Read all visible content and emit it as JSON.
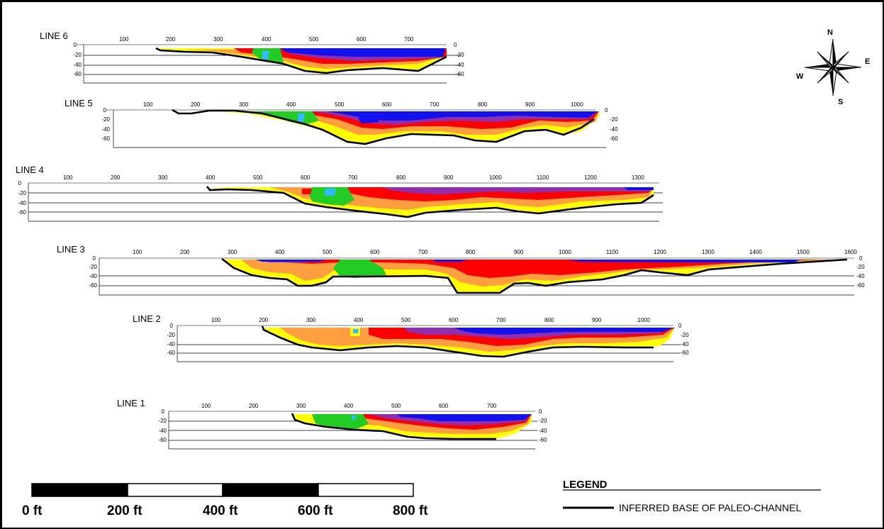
{
  "colors": {
    "yellow": "#ffff00",
    "orange": "#ff9f40",
    "red": "#ff0000",
    "purple": "#8f2fb0",
    "blue": "#1111ee",
    "green": "#22cc22",
    "cyan": "#33bbff",
    "baseline": "#000000"
  },
  "compass": {
    "north": "N",
    "south": "S",
    "east": "E",
    "west": "W"
  },
  "depth_labels": [
    "0",
    "-20",
    "-40",
    "-60"
  ],
  "right_depth_labels": [
    "0",
    "-20",
    "-40",
    "-60"
  ],
  "lines": [
    {
      "id": "line6",
      "title": "LINE 6",
      "ticks": [
        "100",
        "200",
        "300",
        "400",
        "500",
        "600",
        "700"
      ]
    },
    {
      "id": "line5",
      "title": "LINE 5",
      "ticks": [
        "100",
        "200",
        "300",
        "400",
        "500",
        "600",
        "700",
        "800",
        "900",
        "1000"
      ]
    },
    {
      "id": "line4",
      "title": "LINE 4",
      "ticks": [
        "100",
        "200",
        "300",
        "400",
        "500",
        "600",
        "700",
        "800",
        "900",
        "1000",
        "1100",
        "1200",
        "1300"
      ]
    },
    {
      "id": "line3",
      "title": "LINE 3",
      "ticks": [
        "100",
        "200",
        "300",
        "400",
        "500",
        "600",
        "700",
        "800",
        "900",
        "1000",
        "1100",
        "1200",
        "1300",
        "1400",
        "1500",
        "1600"
      ]
    },
    {
      "id": "line2",
      "title": "LINE 2",
      "ticks": [
        "100",
        "200",
        "300",
        "400",
        "500",
        "600",
        "700",
        "800",
        "900",
        "1000"
      ]
    },
    {
      "id": "line1",
      "title": "LINE 1",
      "ticks": [
        "100",
        "200",
        "300",
        "400",
        "500",
        "600",
        "700"
      ]
    }
  ],
  "scale_bar": {
    "labels": [
      "0 ft",
      "200 ft",
      "400 ft",
      "600 ft",
      "800 ft"
    ]
  },
  "legend": {
    "title": "LEGEND",
    "items": [
      {
        "label": "INFERRED BASE OF PALEO-CHANNEL"
      }
    ]
  }
}
